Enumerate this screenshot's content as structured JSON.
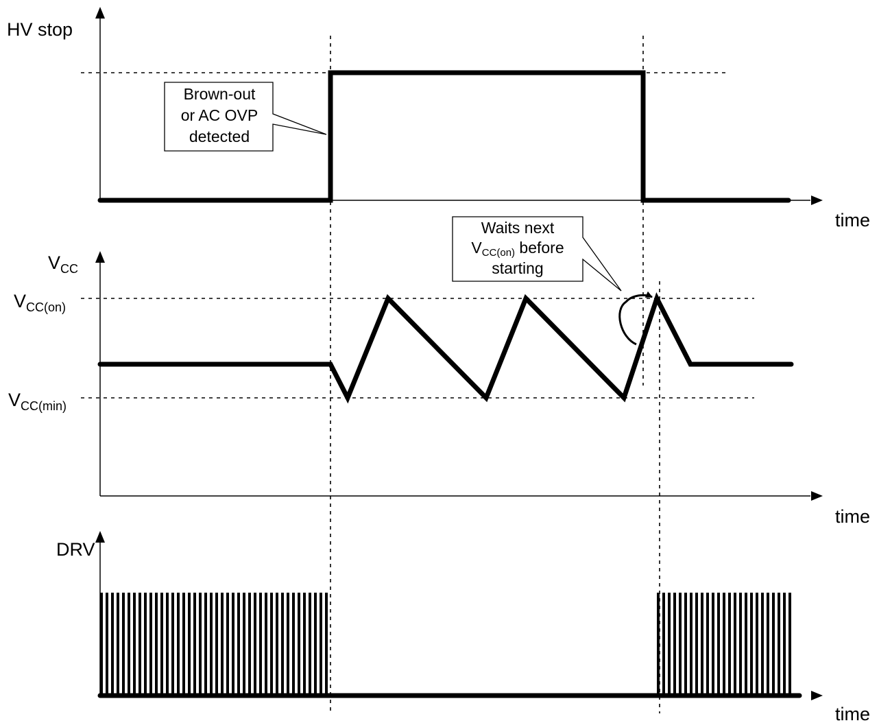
{
  "signals": {
    "hv_stop": {
      "label": "HV stop"
    },
    "vcc": {
      "label": "V",
      "label_sub": "CC"
    },
    "drv": {
      "label": "DRV"
    }
  },
  "levels": {
    "vcc_on": {
      "label": "V",
      "label_sub": "CC(on)"
    },
    "vcc_min": {
      "label": "V",
      "label_sub": "CC(min)"
    }
  },
  "axes": {
    "time_label": "time"
  },
  "callouts": {
    "brownout": {
      "lines": [
        "Brown-out",
        "or AC OVP",
        "detected"
      ]
    },
    "waits": {
      "line1": "Waits next",
      "line2_main": "V",
      "line2_sub": "CC(on)",
      "line2_rest": " before",
      "line3": "starting"
    }
  },
  "colors": {
    "ink": "#000000",
    "background": "#ffffff"
  }
}
